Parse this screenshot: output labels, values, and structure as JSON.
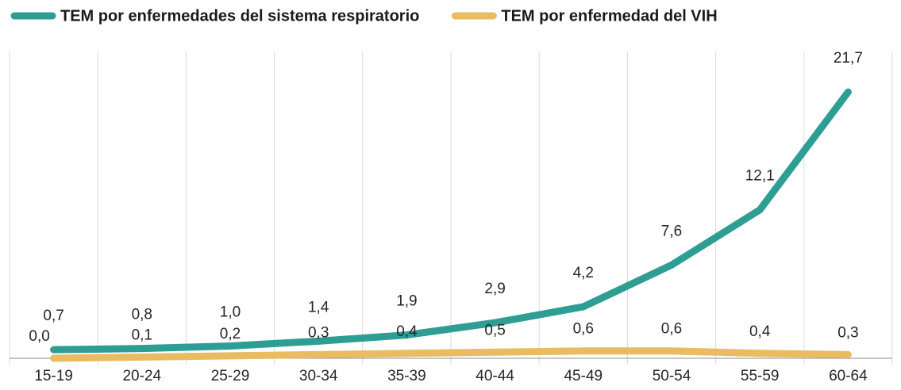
{
  "chart_data": {
    "type": "line",
    "categories": [
      "15-19",
      "20-24",
      "25-29",
      "30-34",
      "35-39",
      "40-44",
      "45-49",
      "50-54",
      "55-59",
      "60-64"
    ],
    "series": [
      {
        "name": "TEM por enfermedades del sistema respiratorio",
        "color": "#2e9e94",
        "values": [
          0.7,
          0.8,
          1.0,
          1.4,
          1.9,
          2.9,
          4.2,
          7.6,
          12.1,
          21.7
        ],
        "value_labels": [
          "0,7",
          "0,8",
          "1,0",
          "1,4",
          "1,9",
          "2,9",
          "4,2",
          "7,6",
          "12,1",
          "21,7"
        ]
      },
      {
        "name": "TEM por enfermedad del VIH",
        "color": "#e9bc62",
        "values": [
          0.0,
          0.1,
          0.2,
          0.3,
          0.4,
          0.5,
          0.6,
          0.6,
          0.4,
          0.3
        ],
        "value_labels": [
          "0,0",
          "0,1",
          "0,2",
          "0,3",
          "0,4",
          "0,5",
          "0,6",
          "0,6",
          "0,4",
          "0,3"
        ]
      }
    ],
    "ylim": [
      0,
      25
    ],
    "legend": "top"
  }
}
